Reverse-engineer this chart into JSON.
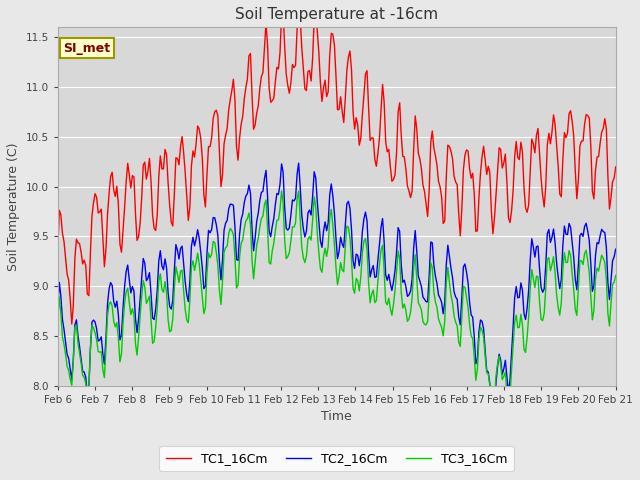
{
  "title": "Soil Temperature at -16cm",
  "xlabel": "Time",
  "ylabel": "Soil Temperature (C)",
  "ylim": [
    8.0,
    11.6
  ],
  "yticks": [
    8.0,
    8.5,
    9.0,
    9.5,
    10.0,
    10.5,
    11.0,
    11.5
  ],
  "background_color": "#e8e8e8",
  "plot_bg_color": "#d8d8d8",
  "grid_color": "#ffffff",
  "annotation_text": "SI_met",
  "annotation_bg": "#ffffcc",
  "annotation_border": "#999900",
  "legend_entries": [
    "TC1_16Cm",
    "TC2_16Cm",
    "TC3_16Cm"
  ],
  "line_colors": [
    "#ff0000",
    "#0000ff",
    "#00cc00"
  ],
  "x_start": 6.0,
  "x_end": 21.0,
  "xtick_positions": [
    6,
    7,
    8,
    9,
    10,
    11,
    12,
    13,
    14,
    15,
    16,
    17,
    18,
    19,
    20,
    21
  ],
  "xtick_labels": [
    "Feb 6",
    "Feb 7",
    "Feb 8",
    "Feb 9",
    "Feb 10",
    "Feb 11",
    "Feb 12",
    "Feb 13",
    "Feb 14",
    "Feb 15",
    "Feb 16",
    "Feb 17",
    "Feb 18",
    "Feb 19",
    "Feb 20",
    "Feb 21"
  ],
  "figsize": [
    6.4,
    4.8
  ],
  "dpi": 100
}
